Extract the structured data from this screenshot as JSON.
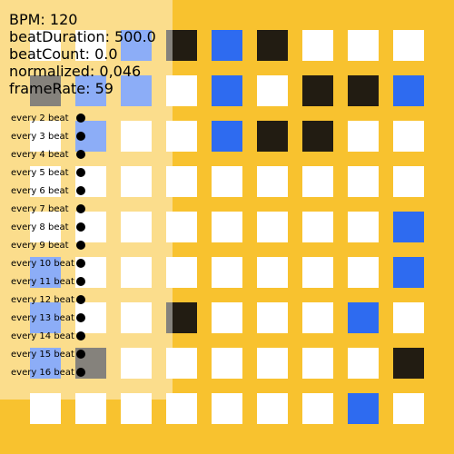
{
  "colors": {
    "background": "#F8C22F",
    "cell_white": "#FFFFFF",
    "cell_blue": "#2E6BF0",
    "cell_black": "#221C12",
    "panel_overlay": "rgba(255,255,255,0.45)"
  },
  "stats": {
    "bpm": "BPM: 120",
    "beat_duration": "beatDuration: 500.0",
    "beat_count": "beatCount: 0.0",
    "normalized": "normalized: 0,046",
    "frame_rate": "frameRate: 59"
  },
  "beats": [
    {
      "label": "every 2 beat"
    },
    {
      "label": "every 3 beat"
    },
    {
      "label": "every 4 beat"
    },
    {
      "label": "every 5 beat"
    },
    {
      "label": "every 6 beat"
    },
    {
      "label": "every 7 beat"
    },
    {
      "label": "every 8 beat"
    },
    {
      "label": "every 9 beat"
    },
    {
      "label": "every 10 beat"
    },
    {
      "label": "every 11 beat"
    },
    {
      "label": "every 12 beat"
    },
    {
      "label": "every 13 beat"
    },
    {
      "label": "every 14 beat"
    },
    {
      "label": "every 15 beat"
    },
    {
      "label": "every 16 beat"
    }
  ],
  "grid": [
    [
      "w",
      "w",
      "b",
      "k",
      "b",
      "k",
      "w",
      "w",
      "w"
    ],
    [
      "k",
      "b",
      "b",
      "w",
      "b",
      "w",
      "k",
      "k",
      "b"
    ],
    [
      "w",
      "b",
      "w",
      "w",
      "b",
      "k",
      "k",
      "w",
      "w"
    ],
    [
      "w",
      "w",
      "w",
      "w",
      "w",
      "w",
      "w",
      "w",
      "w"
    ],
    [
      "w",
      "w",
      "w",
      "w",
      "w",
      "w",
      "w",
      "w",
      "b"
    ],
    [
      "b",
      "w",
      "w",
      "w",
      "w",
      "w",
      "w",
      "w",
      "b"
    ],
    [
      "b",
      "w",
      "w",
      "k",
      "w",
      "w",
      "w",
      "b",
      "w"
    ],
    [
      "b",
      "k",
      "w",
      "w",
      "w",
      "w",
      "w",
      "w",
      "k"
    ],
    [
      "w",
      "w",
      "w",
      "w",
      "w",
      "w",
      "w",
      "b",
      "w"
    ]
  ]
}
